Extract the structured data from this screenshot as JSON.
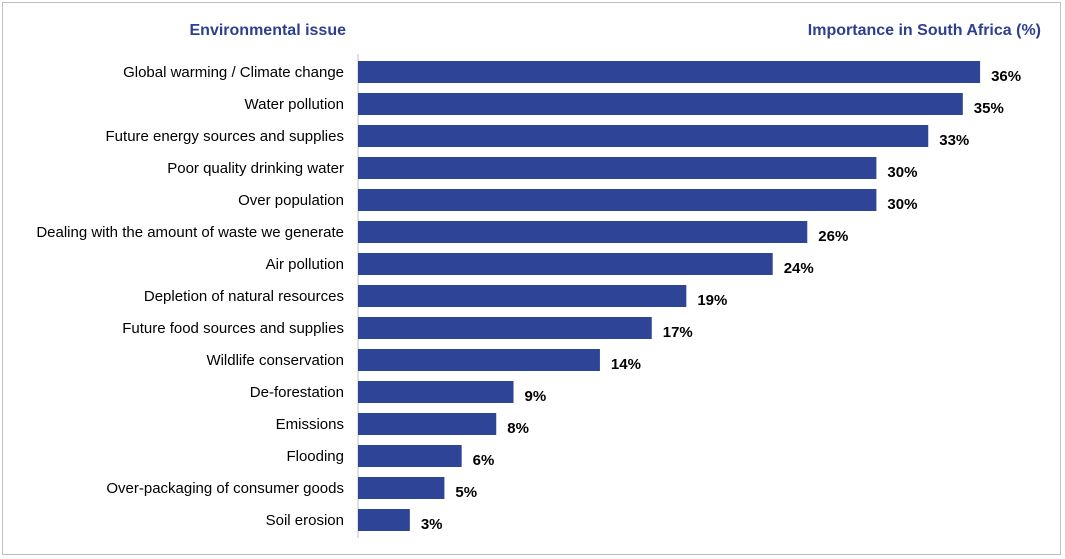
{
  "chart_data": {
    "type": "bar",
    "orientation": "horizontal",
    "column_headers": {
      "category": "Environmental issue",
      "value": "Importance in South Africa (%)"
    },
    "categories": [
      "Global warming / Climate change",
      "Water pollution",
      "Future energy sources and supplies",
      "Poor quality drinking water",
      "Over population",
      "Dealing with the amount of waste we generate",
      "Air pollution",
      "Depletion of natural resources",
      "Future food sources and supplies",
      "Wildlife conservation",
      "De-forestation",
      "Emissions",
      "Flooding",
      "Over-packaging of consumer goods",
      "Soil erosion"
    ],
    "values": [
      36,
      35,
      33,
      30,
      30,
      26,
      24,
      19,
      17,
      14,
      9,
      8,
      6,
      5,
      3
    ],
    "data_labels": [
      "36%",
      "35%",
      "33%",
      "30%",
      "30%",
      "26%",
      "24%",
      "19%",
      "17%",
      "14%",
      "9%",
      "8%",
      "6%",
      "5%",
      "3%"
    ],
    "xlim": [
      0,
      36
    ],
    "grid": false,
    "legend": "none",
    "bar_color": "#2e4496",
    "header_color": "#2e3f8f",
    "axis_color": "#bfbfbf"
  }
}
